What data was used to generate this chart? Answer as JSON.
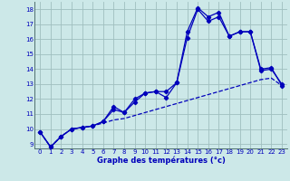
{
  "xlabel": "Graphe des températures (°c)",
  "bg_color": "#cce8e8",
  "grid_color": "#9fbfbf",
  "line_color": "#0000bb",
  "xlim": [
    -0.5,
    23.5
  ],
  "ylim": [
    8.7,
    18.5
  ],
  "xticks": [
    0,
    1,
    2,
    3,
    4,
    5,
    6,
    7,
    8,
    9,
    10,
    11,
    12,
    13,
    14,
    15,
    16,
    17,
    18,
    19,
    20,
    21,
    22,
    23
  ],
  "yticks": [
    9,
    10,
    11,
    12,
    13,
    14,
    15,
    16,
    17,
    18
  ],
  "line1_x": [
    0,
    1,
    2,
    3,
    4,
    5,
    6,
    7,
    8,
    9,
    10,
    11,
    12,
    13,
    14,
    15,
    16,
    17,
    18,
    19,
    20,
    21,
    22,
    23
  ],
  "line1_y": [
    9.8,
    8.8,
    9.5,
    10.0,
    10.1,
    10.2,
    10.5,
    11.3,
    11.1,
    11.8,
    12.4,
    12.5,
    12.5,
    13.1,
    16.1,
    18.0,
    17.2,
    17.5,
    16.2,
    16.5,
    16.5,
    13.9,
    14.0,
    13.0
  ],
  "line2_x": [
    0,
    1,
    2,
    3,
    4,
    5,
    6,
    7,
    8,
    9,
    10,
    11,
    12,
    13,
    14,
    15,
    16,
    17,
    18,
    19,
    20,
    21,
    22,
    23
  ],
  "line2_y": [
    9.8,
    8.8,
    9.5,
    10.0,
    10.1,
    10.2,
    10.5,
    11.5,
    11.1,
    12.0,
    12.4,
    12.5,
    12.1,
    13.1,
    16.5,
    18.1,
    17.5,
    17.8,
    16.2,
    16.5,
    16.5,
    14.0,
    14.1,
    12.9
  ],
  "line3_x": [
    0,
    1,
    2,
    3,
    4,
    5,
    6,
    7,
    8,
    9,
    10,
    11,
    12,
    13,
    14,
    15,
    16,
    17,
    18,
    19,
    20,
    21,
    22,
    23
  ],
  "line3_y": [
    9.8,
    8.8,
    9.5,
    10.0,
    10.1,
    10.2,
    10.4,
    10.6,
    10.7,
    10.9,
    11.1,
    11.3,
    11.5,
    11.7,
    11.9,
    12.1,
    12.3,
    12.5,
    12.7,
    12.9,
    13.1,
    13.3,
    13.4,
    12.9
  ],
  "tick_fontsize": 5.0,
  "xlabel_fontsize": 6.0
}
